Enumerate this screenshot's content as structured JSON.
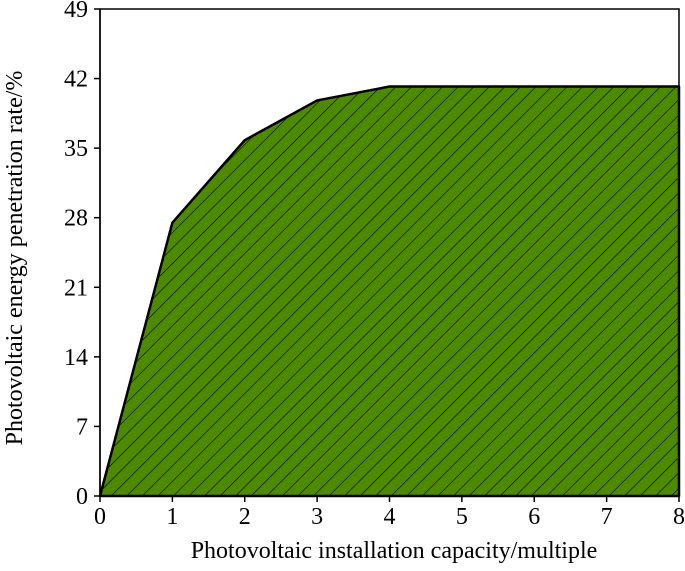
{
  "chart_data": {
    "type": "area",
    "title": "",
    "xlabel": "Photovoltaic installation capacity/multiple",
    "ylabel": "Photovoltaic energy penetration rate/%",
    "x": [
      0,
      1,
      2,
      3,
      4,
      5,
      6,
      7,
      8
    ],
    "series": [
      {
        "values": [
          0,
          27.5,
          35.8,
          39.8,
          41.2,
          41.2,
          41.2,
          41.2,
          41.2
        ]
      }
    ],
    "xlim": [
      0,
      8
    ],
    "ylim": [
      0,
      49
    ],
    "xticks": [
      "0",
      "1",
      "2",
      "3",
      "4",
      "5",
      "6",
      "7",
      "8"
    ],
    "yticks": [
      "0",
      "7",
      "14",
      "21",
      "28",
      "35",
      "42",
      "49"
    ],
    "grid": false,
    "legend": "none",
    "fill_pattern": "diagonal-hatch",
    "colors": {
      "fill": "#4d8a00",
      "hatch": "#000000",
      "outline": "#000000",
      "axis": "#000000",
      "background": "#ffffff"
    }
  }
}
